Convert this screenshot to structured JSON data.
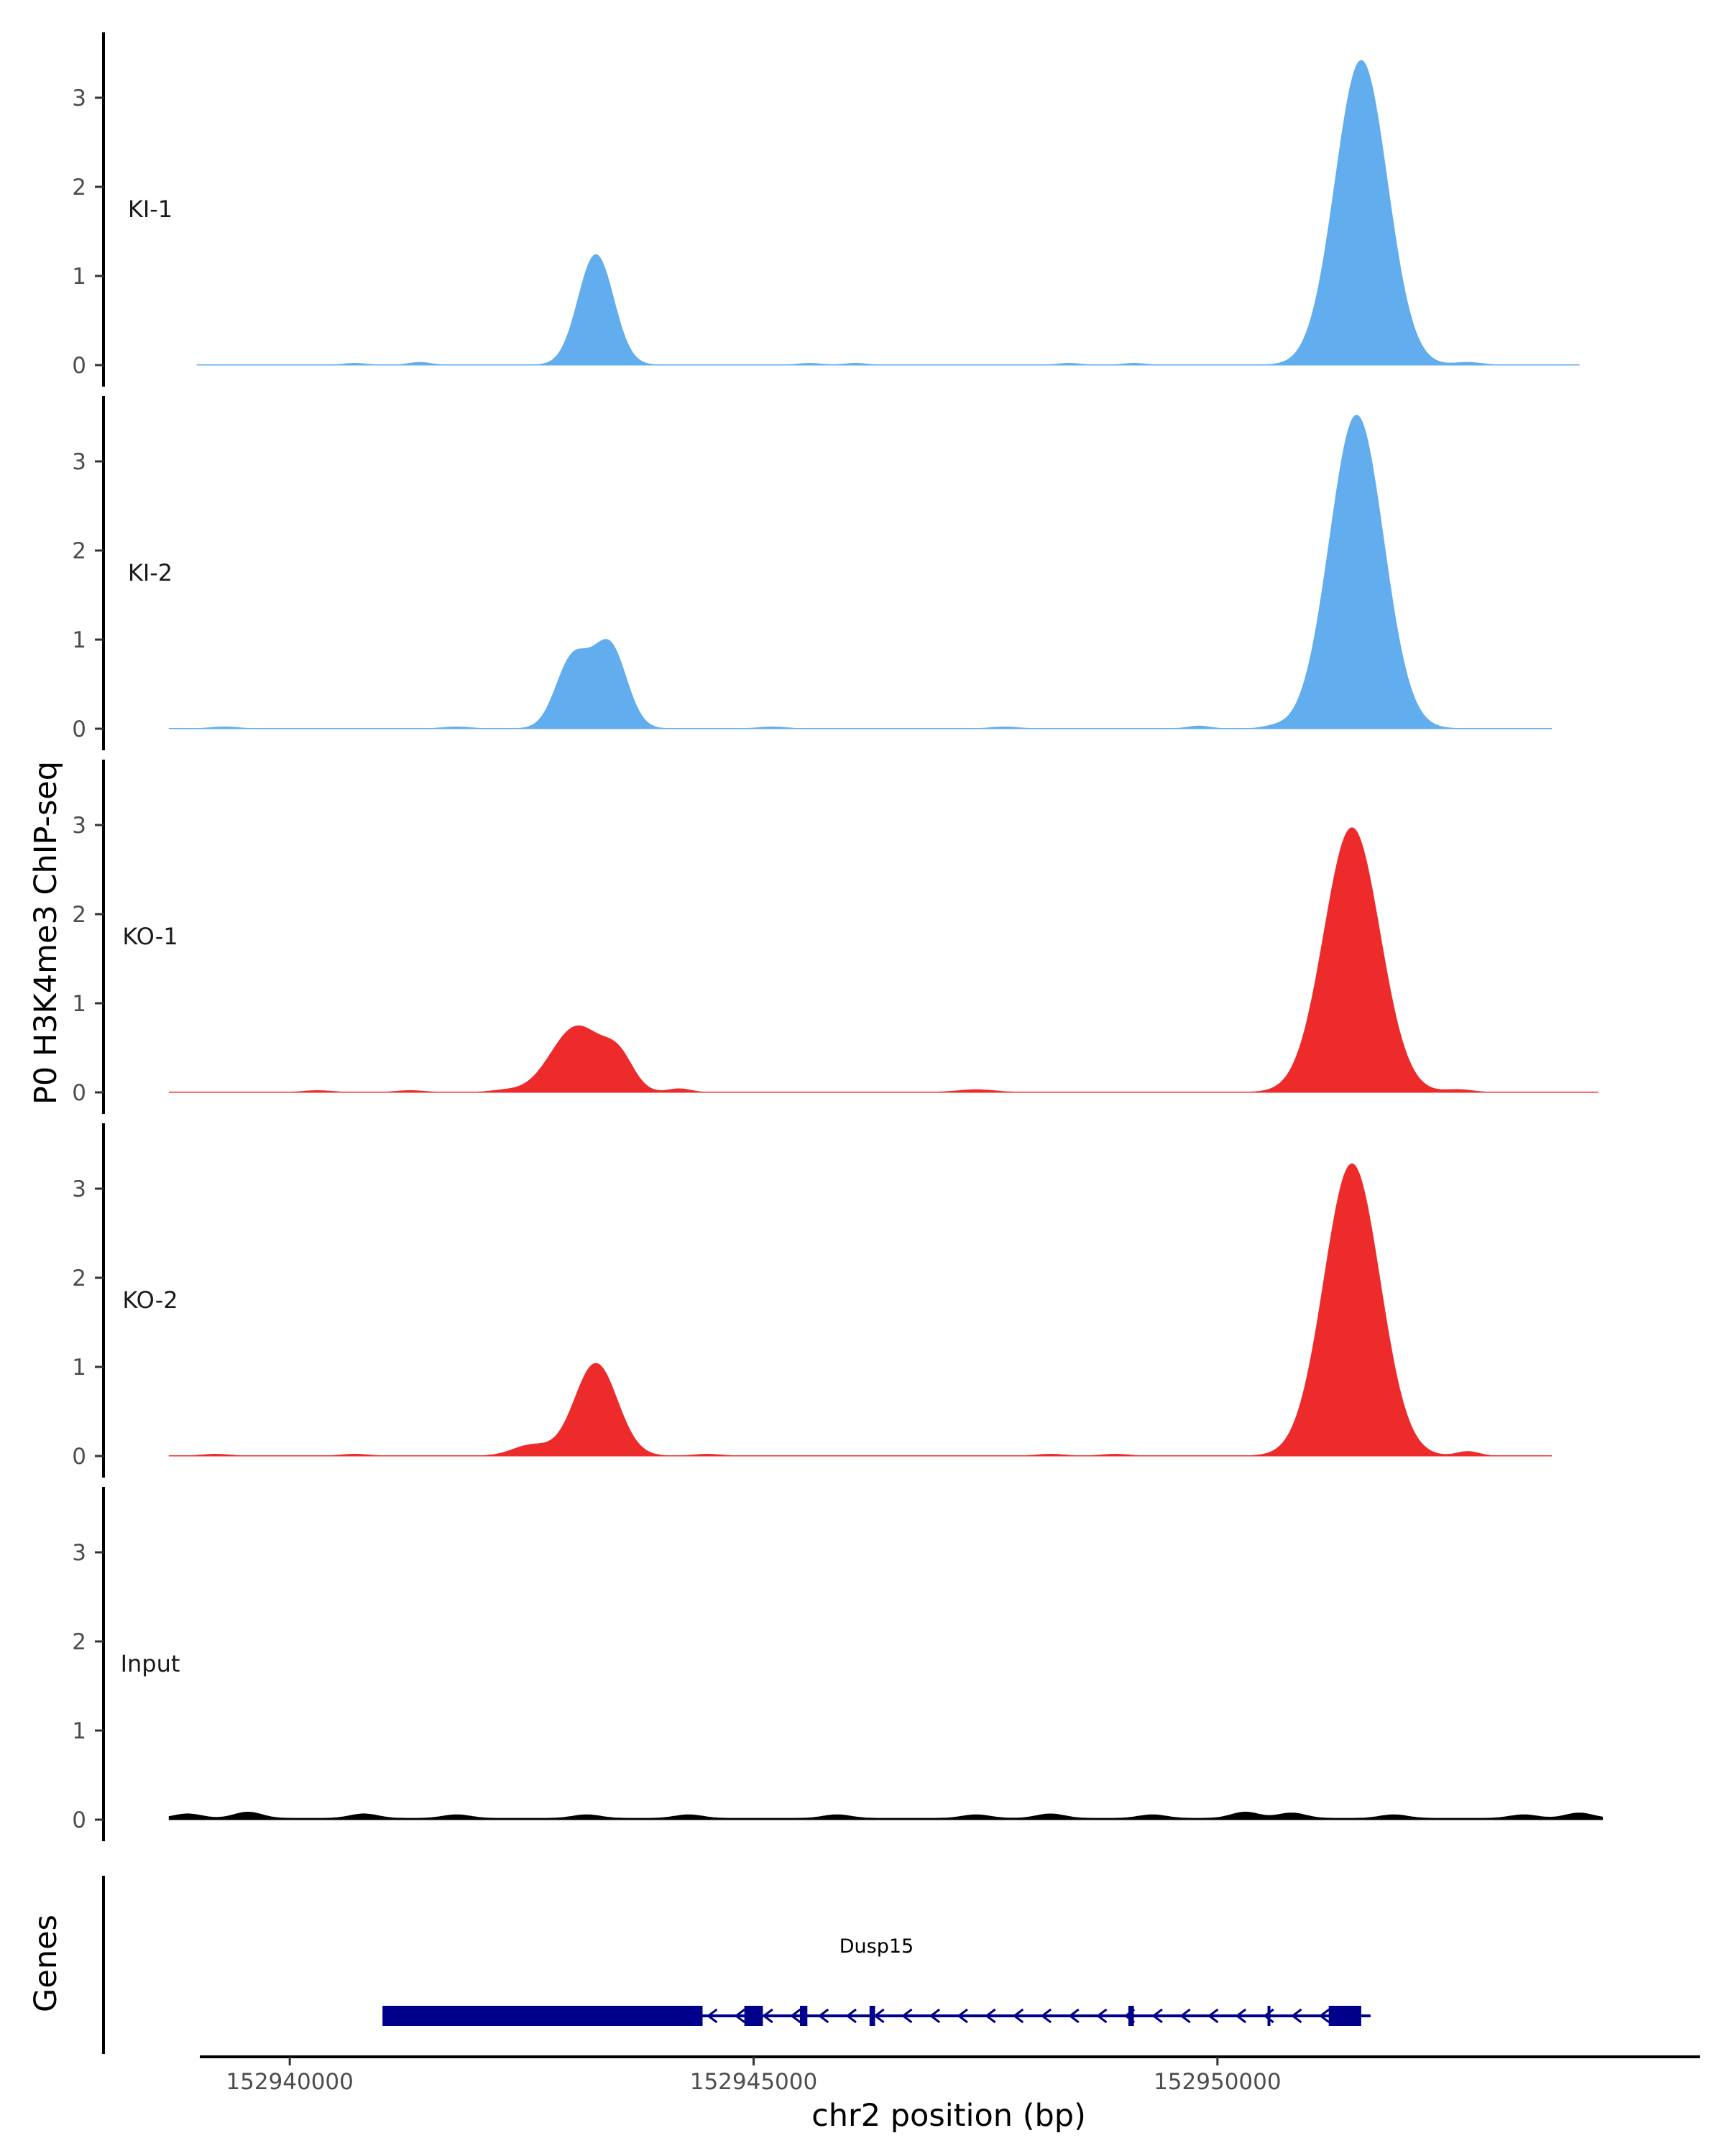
{
  "chart_data": {
    "type": "area",
    "ylabel": "P0 H3K4me3 ChIP-seq",
    "xlabel": "chr2 position (bp)",
    "genes_label": "Genes",
    "xlim": [
      152938000,
      152955200
    ],
    "ylim": [
      0,
      3.7
    ],
    "yticks": [
      0,
      1,
      2,
      3
    ],
    "xticks": [
      152940000,
      152945000,
      152950000
    ],
    "xtick_labels": [
      "152940000",
      "152945000",
      "152950000"
    ],
    "colors": {
      "KI": "#61adee",
      "KO": "#ed2b2b",
      "Input": "#000000",
      "gene": "#00008b"
    },
    "tracks": [
      {
        "name": "KI-1",
        "color": "#61adee",
        "range": [
          152939000,
          152953900
        ],
        "peaks": [
          [
            152943300,
            1.24,
            190
          ],
          [
            152951550,
            3.42,
            280
          ]
        ],
        "noise": [
          [
            152940700,
            0.02,
            120
          ],
          [
            152941400,
            0.03,
            120
          ],
          [
            152945600,
            0.02,
            120
          ],
          [
            152946100,
            0.02,
            120
          ],
          [
            152948400,
            0.02,
            120
          ],
          [
            152949100,
            0.02,
            120
          ],
          [
            152952700,
            0.03,
            150
          ]
        ]
      },
      {
        "name": "KI-2",
        "color": "#61adee",
        "range": [
          152938700,
          152953600
        ],
        "peaks": [
          [
            152943050,
            0.78,
            180
          ],
          [
            152943450,
            0.92,
            180
          ],
          [
            152951500,
            3.52,
            290
          ]
        ],
        "noise": [
          [
            152939300,
            0.02,
            150
          ],
          [
            152941800,
            0.02,
            150
          ],
          [
            152945200,
            0.02,
            150
          ],
          [
            152947700,
            0.02,
            150
          ],
          [
            152949800,
            0.03,
            120
          ],
          [
            152950600,
            0.02,
            120
          ]
        ]
      },
      {
        "name": "KO-1",
        "color": "#ed2b2b",
        "range": [
          152938700,
          152954100
        ],
        "peaks": [
          [
            152943100,
            0.74,
            280
          ],
          [
            152943550,
            0.32,
            160
          ],
          [
            152951450,
            2.97,
            300
          ]
        ],
        "noise": [
          [
            152940300,
            0.02,
            150
          ],
          [
            152941300,
            0.02,
            150
          ],
          [
            152942300,
            0.02,
            150
          ],
          [
            152944200,
            0.04,
            120
          ],
          [
            152947400,
            0.03,
            200
          ],
          [
            152952600,
            0.03,
            150
          ]
        ]
      },
      {
        "name": "KO-2",
        "color": "#ed2b2b",
        "range": [
          152938700,
          152953600
        ],
        "peaks": [
          [
            152943300,
            1.04,
            230
          ],
          [
            152942600,
            0.12,
            200
          ],
          [
            152951450,
            3.28,
            300
          ]
        ],
        "noise": [
          [
            152939200,
            0.02,
            150
          ],
          [
            152940700,
            0.02,
            150
          ],
          [
            152944500,
            0.02,
            150
          ],
          [
            152948200,
            0.02,
            150
          ],
          [
            152948900,
            0.02,
            150
          ],
          [
            152952700,
            0.05,
            120
          ]
        ]
      },
      {
        "name": "Input",
        "color": "#000000",
        "range": [
          152938700,
          152954150
        ],
        "peaks": [],
        "noise": [
          [
            152938900,
            0.05,
            150
          ],
          [
            152939550,
            0.07,
            150
          ],
          [
            152940800,
            0.05,
            150
          ],
          [
            152941800,
            0.04,
            150
          ],
          [
            152943200,
            0.04,
            150
          ],
          [
            152944300,
            0.04,
            150
          ],
          [
            152945900,
            0.04,
            150
          ],
          [
            152947400,
            0.04,
            150
          ],
          [
            152948200,
            0.05,
            150
          ],
          [
            152949300,
            0.04,
            150
          ],
          [
            152950300,
            0.07,
            150
          ],
          [
            152950800,
            0.06,
            150
          ],
          [
            152951900,
            0.04,
            150
          ],
          [
            152953300,
            0.04,
            150
          ],
          [
            152953900,
            0.06,
            150
          ]
        ],
        "baseline": 0.015
      }
    ],
    "gene": {
      "name": "Dusp15",
      "strand": "-",
      "start": 152941000,
      "end": 152951650,
      "exons": [
        [
          152941000,
          152944450
        ],
        [
          152944900,
          152945100
        ],
        [
          152945500,
          152945580
        ],
        [
          152946250,
          152946310
        ],
        [
          152949040,
          152949100
        ],
        [
          152950540,
          152950570
        ],
        [
          152951200,
          152951550
        ]
      ]
    }
  }
}
